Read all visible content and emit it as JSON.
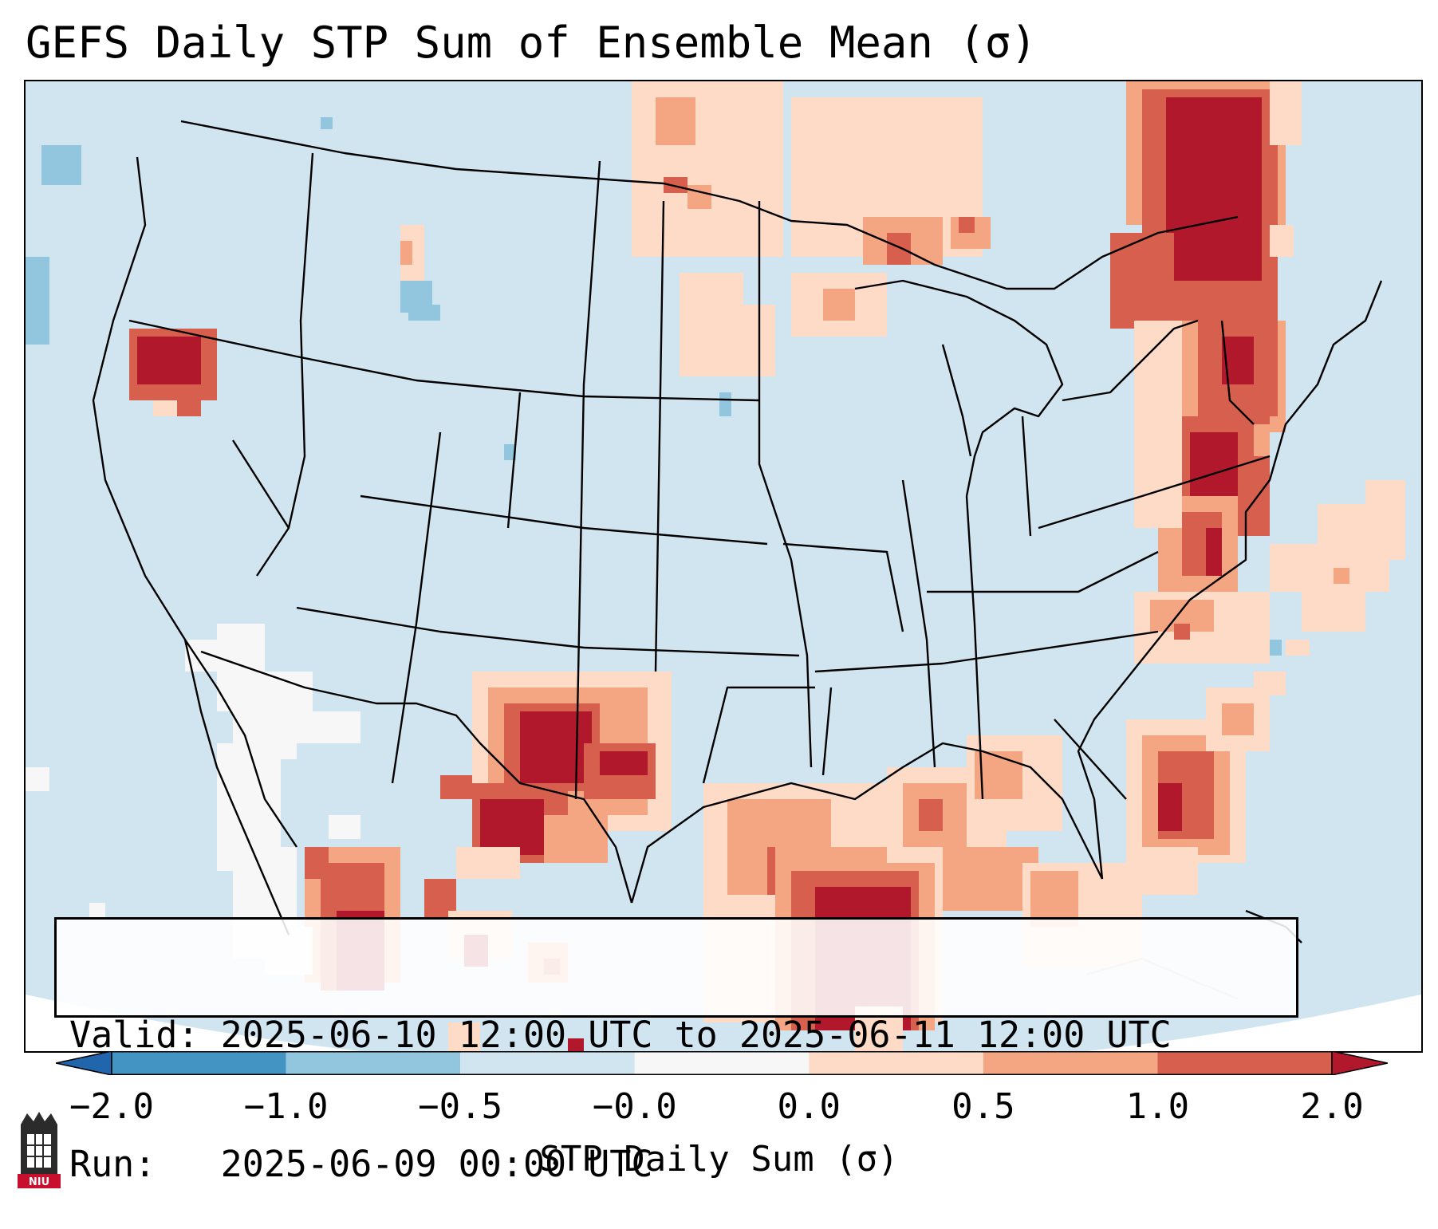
{
  "title": "GEFS Daily STP Sum of Ensemble Mean (σ)",
  "info": {
    "valid": "Valid: 2025-06-10 12:00 UTC to 2025-06-11 12:00 UTC",
    "run": "Run:   2025-06-09 00:00 UTC"
  },
  "colorbar": {
    "label": "STP Daily Sum (σ)",
    "ticks": [
      "−2.0",
      "−1.0",
      "−0.5",
      "−0.0",
      "0.0",
      "0.5",
      "1.0",
      "2.0"
    ],
    "bins": [
      {
        "range": "-2.0 to -1.0",
        "color": "#4393c3"
      },
      {
        "range": "-1.0 to -0.5",
        "color": "#92c5de"
      },
      {
        "range": "-0.5 to -0.0",
        "color": "#d1e5f0"
      },
      {
        "range": "-0.0 to 0.0",
        "color": "#f7f7f7"
      },
      {
        "range": "0.0 to 0.5",
        "color": "#fddbc7"
      },
      {
        "range": "0.5 to 1.0",
        "color": "#f4a582"
      },
      {
        "range": "1.0 to 2.0",
        "color": "#d6604d"
      }
    ],
    "under_color": "#2166ac",
    "over_color": "#b2182b"
  },
  "map": {
    "background_color": "#d1e5f0",
    "outside_color": "#ffffff",
    "border_color": "#000000",
    "regions": [
      {
        "name": "Northeast / Quebec maximum",
        "value": 2.0
      },
      {
        "name": "Mid-Atlantic corridor",
        "value": 1.5
      },
      {
        "name": "Texas Gulf Coast maximum",
        "value": 2.0
      },
      {
        "name": "Upper Midwest / Great Lakes",
        "value": 0.3
      },
      {
        "name": "Northern Plains / ND",
        "value": 0.3
      },
      {
        "name": "New Mexico / West Texas",
        "value": 1.5
      },
      {
        "name": "Northern California / Oregon border",
        "value": 1.5
      },
      {
        "name": "Western Mexico",
        "value": 1.5
      },
      {
        "name": "Southeast / Florida",
        "value": 1.0
      },
      {
        "name": "Baja California / Arizona",
        "value": 0.0
      },
      {
        "name": "Pacific Northwest offshore",
        "value": -0.7
      },
      {
        "name": "Western Atlantic offshore",
        "value": 0.3
      }
    ]
  },
  "logo": {
    "text": "NIU"
  }
}
